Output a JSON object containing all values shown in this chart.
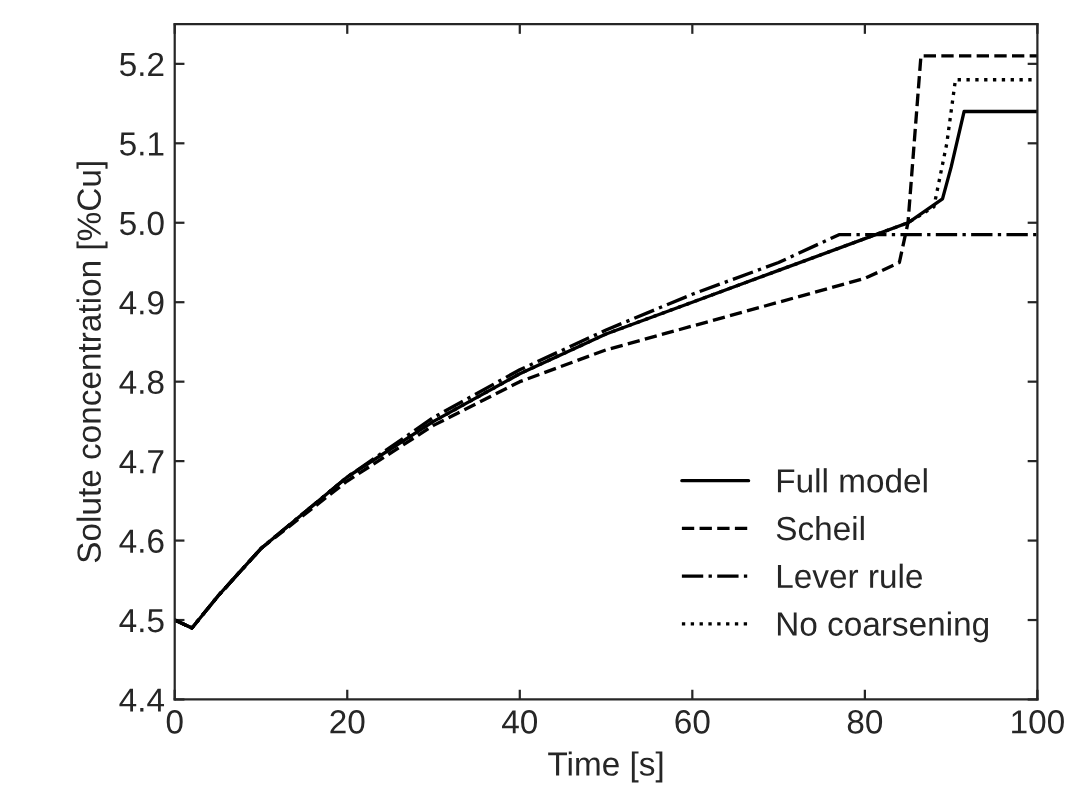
{
  "chart_data": {
    "type": "line",
    "xlabel": "Time [s]",
    "ylabel": "Solute concentration [%Cu]",
    "xlim": [
      0,
      100
    ],
    "ylim": [
      4.4,
      5.25
    ],
    "xticks": [
      0,
      20,
      40,
      60,
      80,
      100
    ],
    "yticks": [
      4.4,
      4.5,
      4.6,
      4.7,
      4.8,
      4.9,
      {
        "value": 5.0,
        "label": "5.0"
      },
      5.1,
      5.2
    ],
    "grid": false,
    "legend": "bottom right",
    "series": [
      {
        "name": "Full model",
        "color": "#000000",
        "line_style": "solid",
        "x": [
          0,
          2,
          5,
          10,
          20,
          30,
          40,
          50,
          60,
          70,
          80,
          85,
          89,
          90,
          91.5,
          100
        ],
        "values": [
          4.5,
          4.49,
          4.53,
          4.59,
          4.68,
          4.75,
          4.81,
          4.86,
          4.9,
          4.94,
          4.98,
          5.0,
          5.03,
          5.07,
          5.14,
          5.14
        ]
      },
      {
        "name": "Scheil",
        "color": "#000000",
        "line_style": "dashed",
        "x": [
          0,
          2,
          5,
          10,
          20,
          30,
          40,
          50,
          60,
          70,
          80,
          84,
          85,
          86.5,
          100
        ],
        "values": [
          4.5,
          4.49,
          4.53,
          4.59,
          4.675,
          4.745,
          4.8,
          4.84,
          4.87,
          4.9,
          4.93,
          4.95,
          5.0,
          5.21,
          5.21
        ]
      },
      {
        "name": "Lever rule",
        "color": "#000000",
        "line_style": "dashdot",
        "x": [
          0,
          2,
          5,
          10,
          20,
          30,
          40,
          50,
          60,
          70,
          77,
          100
        ],
        "values": [
          4.5,
          4.49,
          4.53,
          4.59,
          4.68,
          4.755,
          4.815,
          4.865,
          4.91,
          4.95,
          4.985,
          4.985
        ]
      },
      {
        "name": "No coarsening",
        "color": "#000000",
        "line_style": "dotted",
        "x": [
          0,
          2,
          5,
          10,
          20,
          30,
          40,
          50,
          60,
          70,
          80,
          85,
          88,
          89.5,
          90.5,
          100
        ],
        "values": [
          4.5,
          4.49,
          4.53,
          4.59,
          4.68,
          4.75,
          4.81,
          4.86,
          4.9,
          4.94,
          4.98,
          5.0,
          5.02,
          5.1,
          5.18,
          5.18
        ]
      }
    ]
  }
}
